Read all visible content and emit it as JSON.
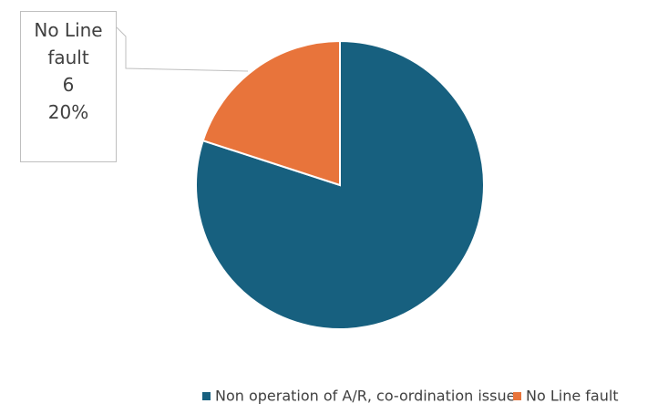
{
  "chart_data": {
    "type": "pie",
    "categories": [
      "Non operation of A/R, co-ordination issue",
      "No Line fault"
    ],
    "values": [
      24,
      6
    ],
    "percent_labels": [
      null,
      "20%"
    ],
    "colors": [
      "#17607f",
      "#e8743b"
    ],
    "legend": "bottom"
  }
}
